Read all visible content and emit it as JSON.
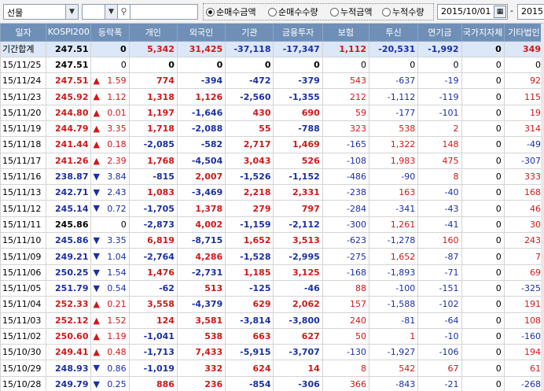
{
  "toolbar": {
    "market_select": "선물",
    "radios": [
      {
        "label": "순매수금액",
        "selected": true
      },
      {
        "label": "순매수수량",
        "selected": false
      },
      {
        "label": "누적금액",
        "selected": false
      },
      {
        "label": "누적수량",
        "selected": false
      }
    ],
    "date_from": "2015/10/01",
    "date_sep": "-",
    "date_to": "2015"
  },
  "table": {
    "headers": [
      "일자",
      "KOSPI200",
      "등락폭",
      "개인",
      "외국인",
      "기관",
      "금융투자",
      "보험",
      "투신",
      "연기금",
      "국가지자체",
      "기타법인"
    ],
    "total": {
      "label": "기간합계",
      "kospi": "247.51",
      "chg": "0",
      "values": [
        "5,342",
        "31,425",
        "-37,118",
        "-17,347",
        "1,112",
        "-20,531",
        "-1,992",
        "0",
        "349"
      ]
    },
    "rows": [
      {
        "date": "15/11/25",
        "kospi": "247.51",
        "dir": "none",
        "chg": "0",
        "values": [
          "0",
          "0",
          "0",
          "0",
          "0",
          "0",
          "0",
          "0",
          "0"
        ]
      },
      {
        "date": "15/11/24",
        "kospi": "247.51",
        "dir": "up",
        "chg": "1.59",
        "values": [
          "774",
          "-394",
          "-472",
          "-379",
          "543",
          "-637",
          "-19",
          "0",
          "92"
        ]
      },
      {
        "date": "15/11/23",
        "kospi": "245.92",
        "dir": "up",
        "chg": "1.12",
        "values": [
          "1,318",
          "1,126",
          "-2,560",
          "-1,355",
          "212",
          "-1,112",
          "-119",
          "0",
          "115"
        ]
      },
      {
        "date": "15/11/20",
        "kospi": "244.80",
        "dir": "up",
        "chg": "0.01",
        "values": [
          "1,197",
          "-1,646",
          "430",
          "690",
          "59",
          "-177",
          "-101",
          "0",
          "19"
        ]
      },
      {
        "date": "15/11/19",
        "kospi": "244.79",
        "dir": "up",
        "chg": "3.35",
        "values": [
          "1,718",
          "-2,088",
          "55",
          "-788",
          "323",
          "538",
          "2",
          "0",
          "314"
        ]
      },
      {
        "date": "15/11/18",
        "kospi": "241.44",
        "dir": "up",
        "chg": "0.18",
        "values": [
          "-2,085",
          "-582",
          "2,717",
          "1,469",
          "-165",
          "1,322",
          "148",
          "0",
          "-49"
        ]
      },
      {
        "date": "15/11/17",
        "kospi": "241.26",
        "dir": "up",
        "chg": "2.39",
        "values": [
          "1,768",
          "-4,504",
          "3,043",
          "526",
          "-108",
          "1,983",
          "475",
          "0",
          "-307"
        ]
      },
      {
        "date": "15/11/16",
        "kospi": "238.87",
        "dir": "down",
        "chg": "3.84",
        "values": [
          "-815",
          "2,007",
          "-1,526",
          "-1,152",
          "-486",
          "-90",
          "8",
          "0",
          "333"
        ]
      },
      {
        "date": "15/11/13",
        "kospi": "242.71",
        "dir": "down",
        "chg": "2.43",
        "values": [
          "1,083",
          "-3,469",
          "2,218",
          "2,331",
          "-238",
          "163",
          "-40",
          "0",
          "168"
        ]
      },
      {
        "date": "15/11/12",
        "kospi": "245.14",
        "dir": "down",
        "chg": "0.72",
        "values": [
          "-1,705",
          "1,378",
          "279",
          "797",
          "-284",
          "-341",
          "-43",
          "0",
          "46"
        ]
      },
      {
        "date": "15/11/11",
        "kospi": "245.86",
        "dir": "none",
        "chg": "0",
        "values": [
          "-2,873",
          "4,002",
          "-1,159",
          "-2,112",
          "-300",
          "1,261",
          "-41",
          "0",
          "30"
        ]
      },
      {
        "date": "15/11/10",
        "kospi": "245.86",
        "dir": "down",
        "chg": "3.35",
        "values": [
          "6,819",
          "-8,715",
          "1,652",
          "3,513",
          "-623",
          "-1,278",
          "160",
          "0",
          "243"
        ]
      },
      {
        "date": "15/11/09",
        "kospi": "249.21",
        "dir": "down",
        "chg": "1.04",
        "values": [
          "-2,764",
          "4,286",
          "-1,528",
          "-2,995",
          "-275",
          "1,652",
          "-87",
          "0",
          "7"
        ]
      },
      {
        "date": "15/11/06",
        "kospi": "250.25",
        "dir": "down",
        "chg": "1.54",
        "values": [
          "1,476",
          "-2,731",
          "1,185",
          "3,125",
          "-168",
          "-1,893",
          "-71",
          "0",
          "69"
        ]
      },
      {
        "date": "15/11/05",
        "kospi": "251.79",
        "dir": "down",
        "chg": "0.54",
        "values": [
          "-62",
          "513",
          "-125",
          "-46",
          "88",
          "-100",
          "-151",
          "0",
          "-325"
        ]
      },
      {
        "date": "15/11/04",
        "kospi": "252.33",
        "dir": "up",
        "chg": "0.21",
        "values": [
          "3,558",
          "-4,379",
          "629",
          "2,062",
          "157",
          "-1,588",
          "-102",
          "0",
          "191"
        ]
      },
      {
        "date": "15/11/03",
        "kospi": "252.12",
        "dir": "up",
        "chg": "1.52",
        "values": [
          "124",
          "3,581",
          "-3,814",
          "-3,800",
          "240",
          "-81",
          "-64",
          "0",
          "108"
        ]
      },
      {
        "date": "15/11/02",
        "kospi": "250.60",
        "dir": "up",
        "chg": "1.19",
        "values": [
          "-1,041",
          "538",
          "663",
          "627",
          "50",
          "1",
          "-10",
          "0",
          "-160"
        ]
      },
      {
        "date": "15/10/30",
        "kospi": "249.41",
        "dir": "up",
        "chg": "0.48",
        "values": [
          "-1,713",
          "7,433",
          "-5,915",
          "-3,707",
          "-130",
          "-1,927",
          "-106",
          "0",
          "194"
        ]
      },
      {
        "date": "15/10/29",
        "kospi": "248.93",
        "dir": "down",
        "chg": "0.86",
        "values": [
          "-1,019",
          "332",
          "624",
          "14",
          "8",
          "542",
          "67",
          "0",
          "61"
        ]
      },
      {
        "date": "15/10/28",
        "kospi": "249.79",
        "dir": "down",
        "chg": "0.25",
        "values": [
          "886",
          "236",
          "-854",
          "-306",
          "366",
          "-843",
          "-21",
          "0",
          "-268"
        ]
      }
    ]
  },
  "colors": {
    "header_bg": "#6f8fb7",
    "up": "#d01818",
    "down": "#1a2fa5",
    "total_bg": "#dce7f7"
  }
}
